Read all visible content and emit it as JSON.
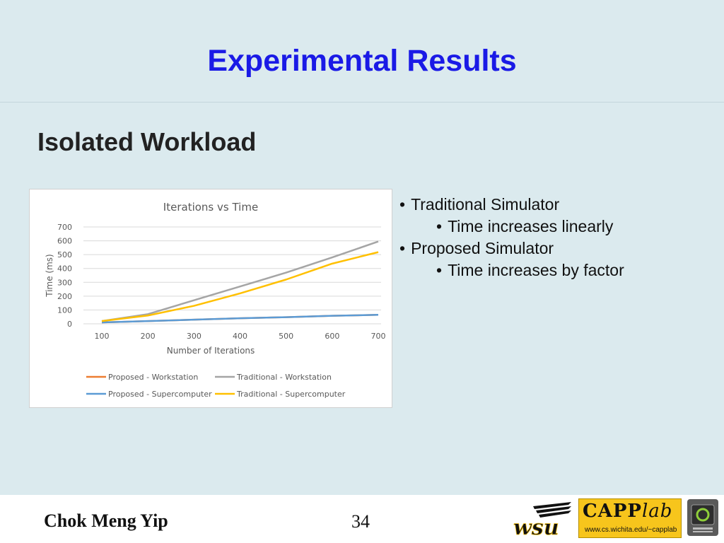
{
  "slide": {
    "title": "Experimental Results",
    "subtitle": "Isolated Workload",
    "bullets": [
      {
        "level": 1,
        "text": "Traditional Simulator"
      },
      {
        "level": 2,
        "text": "Time increases linearly"
      },
      {
        "level": 1,
        "text": "Proposed Simulator"
      },
      {
        "level": 2,
        "text": "Time increases by factor"
      }
    ]
  },
  "footer": {
    "author": "Chok Meng Yip",
    "page_number": "34",
    "wsu_logo_text": "wsu",
    "capp_logo_main": "CAPP",
    "capp_logo_lab": "lab",
    "capp_logo_url": "www.cs.wichita.edu/~capplab",
    "gpu_logo_icon": "gpu-badge-icon"
  },
  "chart_data": {
    "type": "line",
    "title": "Iterations vs Time",
    "xlabel": "Number of Iterations",
    "ylabel": "Time (ms)",
    "x": [
      100,
      200,
      300,
      400,
      500,
      600,
      700
    ],
    "ylim": [
      0,
      700
    ],
    "yticks": [
      0,
      100,
      200,
      300,
      400,
      500,
      600,
      700
    ],
    "grid": true,
    "legend_position": "bottom",
    "series": [
      {
        "name": "Proposed - Workstation",
        "color": "#ed7d31",
        "values": [
          10,
          20,
          30,
          40,
          48,
          58,
          65
        ]
      },
      {
        "name": "Traditional - Workstation",
        "color": "#a5a5a5",
        "values": [
          20,
          70,
          170,
          270,
          370,
          480,
          595
        ]
      },
      {
        "name": "Proposed - Supercomputer",
        "color": "#5b9bd5",
        "values": [
          10,
          20,
          30,
          40,
          48,
          58,
          65
        ]
      },
      {
        "name": "Traditional - Supercomputer",
        "color": "#ffc000",
        "values": [
          20,
          60,
          130,
          220,
          320,
          435,
          518
        ]
      }
    ]
  }
}
